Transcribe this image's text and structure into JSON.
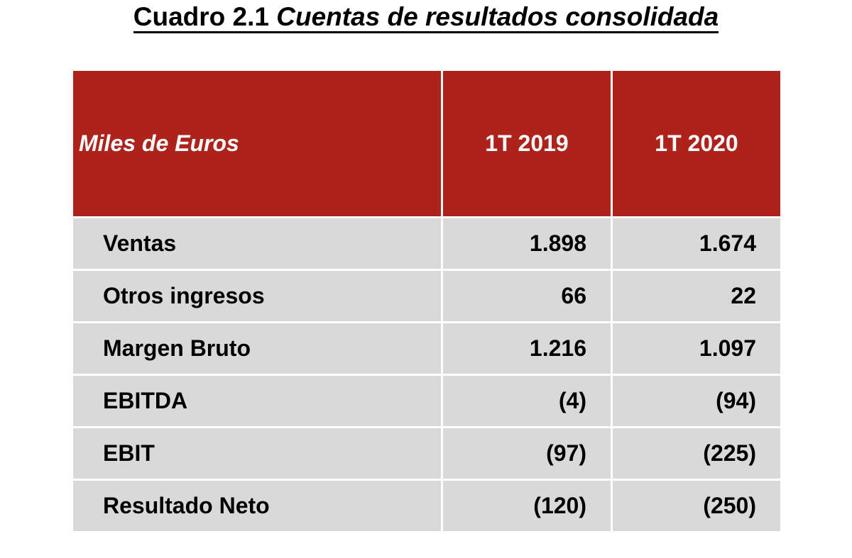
{
  "title": {
    "prefix": "Cuadro 2.1 ",
    "italic": "Cuentas de resultados consolidada"
  },
  "table": {
    "header": {
      "label": "Miles de Euros",
      "col1": "1T 2019",
      "col2": "1T 2020"
    },
    "rows": [
      {
        "label": "Ventas",
        "col1": "1.898",
        "col2": "1.674"
      },
      {
        "label": "Otros ingresos",
        "col1": "66",
        "col2": "22"
      },
      {
        "label": "Margen Bruto",
        "col1": "1.216",
        "col2": "1.097"
      },
      {
        "label": "EBITDA",
        "col1": "(4)",
        "col2": "(94)"
      },
      {
        "label": "EBIT",
        "col1": "(97)",
        "col2": "(225)"
      },
      {
        "label": "Resultado Neto",
        "col1": "(120)",
        "col2": "(250)"
      }
    ]
  },
  "colors": {
    "header_bg": "#ad231b",
    "row_bg": "#d9d9d9"
  }
}
